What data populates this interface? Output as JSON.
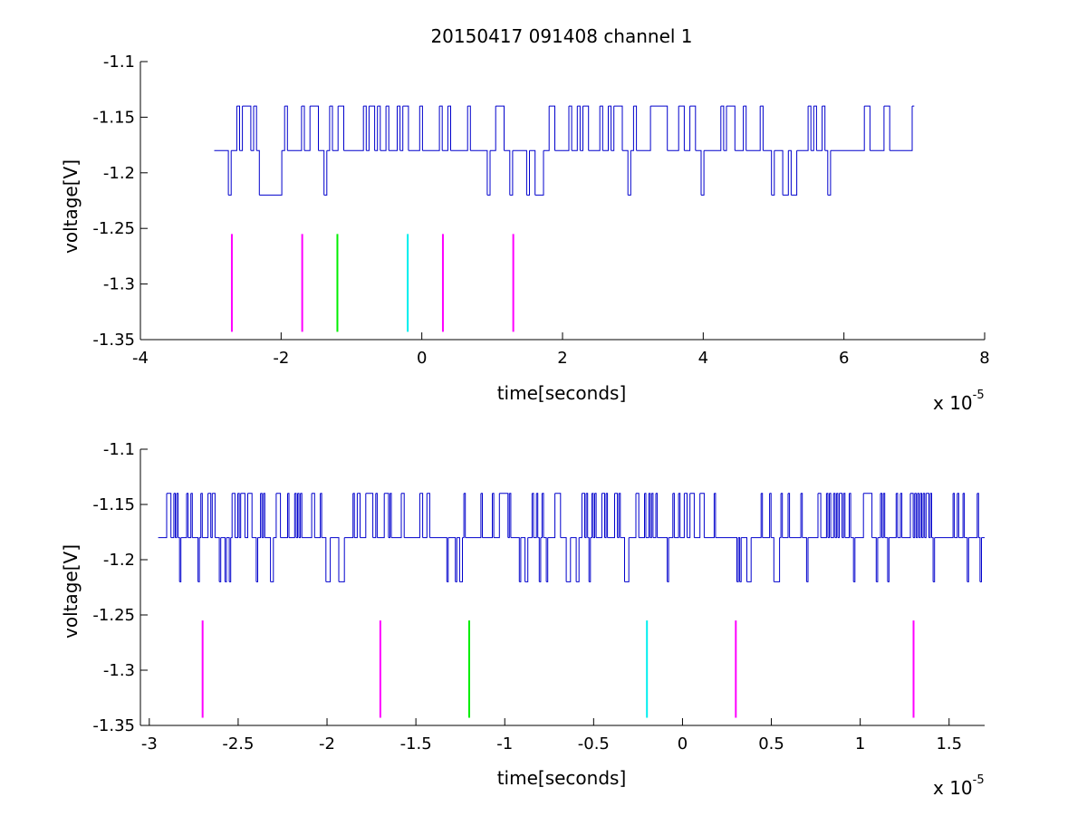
{
  "chart_data": [
    {
      "type": "line",
      "title": "20150417 091408 channel 1",
      "xlabel": "time[seconds]",
      "ylabel": "voltage[V]",
      "x_multiplier_label": "x 10",
      "x_multiplier_exponent": "-5",
      "xlim": [
        -4,
        8
      ],
      "ylim": [
        -1.35,
        -1.1
      ],
      "xticks": [
        -4,
        -2,
        0,
        2,
        4,
        6,
        8
      ],
      "xtick_labels": [
        "-4",
        "-2",
        "0",
        "2",
        "4",
        "6",
        "8"
      ],
      "yticks": [
        -1.1,
        -1.15,
        -1.2,
        -1.25,
        -1.3,
        -1.35
      ],
      "ytick_labels": [
        "-1.1",
        "-1.15",
        "-1.2",
        "-1.25",
        "-1.3",
        "-1.35"
      ],
      "grid": false,
      "series": [
        {
          "color": "#0000cc",
          "levels": [
            -1.14,
            -1.18,
            -1.22
          ],
          "baseline": -1.18,
          "x_range": [
            -2.95,
            7.0
          ],
          "sample_step": 0.04
        }
      ],
      "markers": [
        {
          "x": -2.7,
          "color": "#ff00ff",
          "y_range": [
            -1.255,
            -1.343
          ]
        },
        {
          "x": -1.7,
          "color": "#ff00ff",
          "y_range": [
            -1.255,
            -1.343
          ]
        },
        {
          "x": -1.2,
          "color": "#00ee00",
          "y_range": [
            -1.255,
            -1.343
          ]
        },
        {
          "x": -0.2,
          "color": "#00eeee",
          "y_range": [
            -1.255,
            -1.343
          ]
        },
        {
          "x": 0.3,
          "color": "#ff00ff",
          "y_range": [
            -1.255,
            -1.343
          ]
        },
        {
          "x": 1.3,
          "color": "#ff00ff",
          "y_range": [
            -1.255,
            -1.343
          ]
        }
      ]
    },
    {
      "type": "line",
      "xlabel": "time[seconds]",
      "ylabel": "voltage[V]",
      "x_multiplier_label": "x 10",
      "x_multiplier_exponent": "-5",
      "xlim": [
        -3.05,
        1.7
      ],
      "ylim": [
        -1.35,
        -1.1
      ],
      "xticks": [
        -3,
        -2.5,
        -2,
        -1.5,
        -1,
        -0.5,
        0,
        0.5,
        1,
        1.5
      ],
      "xtick_labels": [
        "-3",
        "-2.5",
        "-2",
        "-1.5",
        "-1",
        "-0.5",
        "0",
        "0.5",
        "1",
        "1.5"
      ],
      "yticks": [
        -1.1,
        -1.15,
        -1.2,
        -1.25,
        -1.3,
        -1.35
      ],
      "ytick_labels": [
        "-1.1",
        "-1.15",
        "-1.2",
        "-1.25",
        "-1.3",
        "-1.35"
      ],
      "grid": false,
      "series": [
        {
          "color": "#0000cc",
          "levels": [
            -1.14,
            -1.18,
            -1.22
          ],
          "baseline": -1.18,
          "x_range": [
            -2.95,
            1.7
          ],
          "sample_step": 0.008
        }
      ],
      "markers": [
        {
          "x": -2.7,
          "color": "#ff00ff",
          "y_range": [
            -1.255,
            -1.343
          ]
        },
        {
          "x": -1.7,
          "color": "#ff00ff",
          "y_range": [
            -1.255,
            -1.343
          ]
        },
        {
          "x": -1.2,
          "color": "#00ee00",
          "y_range": [
            -1.255,
            -1.343
          ]
        },
        {
          "x": -0.2,
          "color": "#00eeee",
          "y_range": [
            -1.255,
            -1.343
          ]
        },
        {
          "x": 0.3,
          "color": "#ff00ff",
          "y_range": [
            -1.255,
            -1.343
          ]
        },
        {
          "x": 1.3,
          "color": "#ff00ff",
          "y_range": [
            -1.255,
            -1.343
          ]
        }
      ]
    }
  ]
}
